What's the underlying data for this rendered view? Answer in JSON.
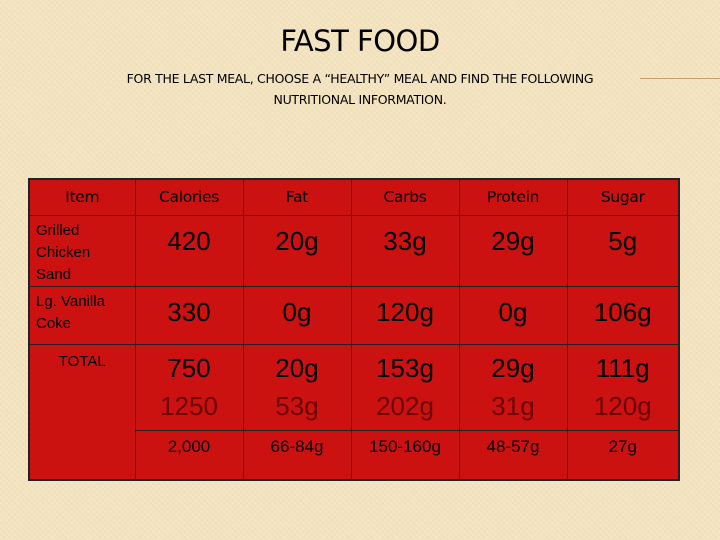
{
  "title": "FAST FOOD",
  "subtitle_line1": "FOR THE LAST MEAL, CHOOSE A “HEALTHY” MEAL AND FIND THE FOLLOWING",
  "subtitle_line2": "NUTRITIONAL INFORMATION.",
  "table": {
    "headers": [
      "Item",
      "Calories",
      "Fat",
      "Carbs",
      "Protein",
      "Sugar"
    ],
    "rows": [
      {
        "item_lines": [
          "Grilled",
          "Chicken",
          "Sand"
        ],
        "values": [
          "420",
          "20g",
          "33g",
          "29g",
          "5g"
        ]
      },
      {
        "item_lines": [
          "Lg. Vanilla",
          "Coke"
        ],
        "values": [
          "330",
          "0g",
          "120g",
          "0g",
          "106g"
        ]
      }
    ],
    "total": {
      "label": "TOTAL",
      "values": [
        "750",
        "20g",
        "153g",
        "29g",
        "111g"
      ],
      "compare_values": [
        "1250",
        "53g",
        "202g",
        "31g",
        "120g"
      ],
      "recommended": [
        "2,000",
        "66-84g",
        "150-160g",
        "48-57g",
        "27g"
      ]
    }
  }
}
